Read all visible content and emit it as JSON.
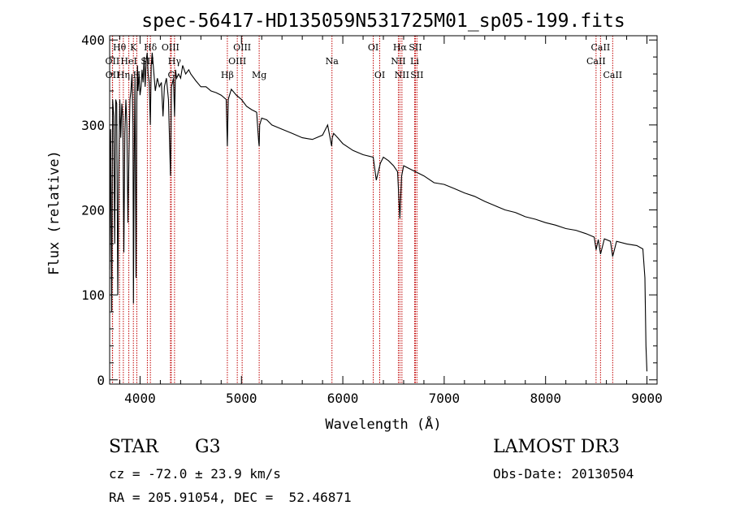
{
  "chart_data": {
    "type": "line",
    "title": "spec-56417-HD135059N531725M01_sp05-199.fits",
    "xlabel": "Wavelength (Å)",
    "ylabel": "Flux (relative)",
    "xlim": [
      3700,
      9100
    ],
    "ylim": [
      -5,
      405
    ],
    "xticks": [
      4000,
      5000,
      6000,
      7000,
      8000,
      9000
    ],
    "yticks": [
      0,
      100,
      200,
      300,
      400
    ],
    "grid": false,
    "series": [
      {
        "name": "spectrum",
        "x": [
          3700,
          3710,
          3720,
          3730,
          3740,
          3750,
          3760,
          3770,
          3780,
          3790,
          3800,
          3810,
          3820,
          3830,
          3840,
          3850,
          3860,
          3870,
          3880,
          3890,
          3900,
          3910,
          3920,
          3930,
          3935,
          3940,
          3950,
          3960,
          3968,
          3975,
          3980,
          3990,
          4000,
          4010,
          4020,
          4030,
          4040,
          4050,
          4060,
          4070,
          4080,
          4090,
          4101,
          4110,
          4120,
          4130,
          4150,
          4170,
          4190,
          4210,
          4226,
          4240,
          4260,
          4280,
          4300,
          4310,
          4320,
          4330,
          4340,
          4350,
          4360,
          4380,
          4400,
          4420,
          4450,
          4480,
          4500,
          4550,
          4600,
          4650,
          4700,
          4750,
          4800,
          4850,
          4861,
          4870,
          4900,
          4950,
          5000,
          5050,
          5100,
          5150,
          5170,
          5175,
          5180,
          5200,
          5250,
          5300,
          5400,
          5500,
          5600,
          5700,
          5800,
          5850,
          5890,
          5896,
          5910,
          5950,
          6000,
          6100,
          6200,
          6300,
          6330,
          6370,
          6400,
          6450,
          6500,
          6540,
          6563,
          6580,
          6600,
          6700,
          6800,
          6900,
          7000,
          7100,
          7200,
          7300,
          7400,
          7500,
          7600,
          7700,
          7800,
          7900,
          8000,
          8100,
          8200,
          8300,
          8400,
          8480,
          8498,
          8520,
          8542,
          8580,
          8640,
          8662,
          8700,
          8800,
          8900,
          8960,
          8980,
          8990,
          9000
        ],
        "y": [
          130,
          295,
          80,
          330,
          310,
          160,
          330,
          325,
          100,
          240,
          330,
          285,
          325,
          310,
          150,
          290,
          330,
          300,
          185,
          260,
          330,
          340,
          360,
          300,
          90,
          230,
          355,
          120,
          330,
          370,
          340,
          360,
          335,
          345,
          365,
          350,
          380,
          345,
          375,
          385,
          360,
          350,
          300,
          370,
          385,
          370,
          340,
          355,
          345,
          350,
          310,
          345,
          355,
          330,
          240,
          345,
          350,
          355,
          310,
          365,
          355,
          360,
          355,
          370,
          360,
          365,
          360,
          352,
          345,
          345,
          340,
          338,
          335,
          330,
          275,
          330,
          342,
          335,
          330,
          322,
          318,
          315,
          280,
          275,
          300,
          308,
          306,
          300,
          295,
          290,
          285,
          283,
          288,
          300,
          275,
          285,
          290,
          285,
          278,
          270,
          265,
          262,
          235,
          255,
          262,
          258,
          252,
          245,
          190,
          240,
          252,
          246,
          240,
          232,
          230,
          225,
          220,
          216,
          210,
          205,
          200,
          197,
          192,
          189,
          185,
          182,
          178,
          176,
          172,
          168,
          153,
          165,
          148,
          166,
          163,
          145,
          163,
          160,
          158,
          154,
          120,
          40,
          10
        ]
      }
    ],
    "lines": [
      {
        "label": "OII",
        "x": 3727,
        "row": 2
      },
      {
        "label": "OII",
        "x": 3729,
        "row": 3
      },
      {
        "label": "Hθ",
        "x": 3797,
        "row": 1
      },
      {
        "label": "Hη",
        "x": 3835,
        "row": 3
      },
      {
        "label": "HeI",
        "x": 3889,
        "row": 2
      },
      {
        "label": "K",
        "x": 3934,
        "row": 1
      },
      {
        "label": "H",
        "x": 3968,
        "row": 3
      },
      {
        "label": "SII",
        "x": 4072,
        "row": 2
      },
      {
        "label": "Hδ",
        "x": 4102,
        "row": 1
      },
      {
        "label": "OIII",
        "x": 4300,
        "row": 1
      },
      {
        "label": "Hγ",
        "x": 4340,
        "row": 2
      },
      {
        "label": "G",
        "x": 4308,
        "row": 3
      },
      {
        "label": "Hβ",
        "x": 4861,
        "row": 3
      },
      {
        "label": "OIII",
        "x": 4959,
        "row": 2
      },
      {
        "label": "OIII",
        "x": 5007,
        "row": 1
      },
      {
        "label": "Mg",
        "x": 5175,
        "row": 3
      },
      {
        "label": "Na",
        "x": 5893,
        "row": 2
      },
      {
        "label": "OI",
        "x": 6300,
        "row": 1
      },
      {
        "label": "OI",
        "x": 6364,
        "row": 3
      },
      {
        "label": "NII",
        "x": 6548,
        "row": 2
      },
      {
        "label": "Hα",
        "x": 6563,
        "row": 1
      },
      {
        "label": "NII",
        "x": 6583,
        "row": 3
      },
      {
        "label": "Li",
        "x": 6708,
        "row": 2
      },
      {
        "label": "SII",
        "x": 6716,
        "row": 1
      },
      {
        "label": "SII",
        "x": 6731,
        "row": 3
      },
      {
        "label": "CaII",
        "x": 8498,
        "row": 2
      },
      {
        "label": "CaII",
        "x": 8542,
        "row": 1
      },
      {
        "label": "CaII",
        "x": 8662,
        "row": 3
      }
    ],
    "line_color": "#c00000",
    "spectrum_color": "#000000"
  },
  "info": {
    "object_class": "STAR",
    "subclass": "G3",
    "redshift": "cz = -72.0 ± 23.9 km/s",
    "coords": "RA = 205.91054, DEC =  52.46871",
    "survey": "LAMOST DR3",
    "obs_date": "Obs-Date: 20130504"
  }
}
